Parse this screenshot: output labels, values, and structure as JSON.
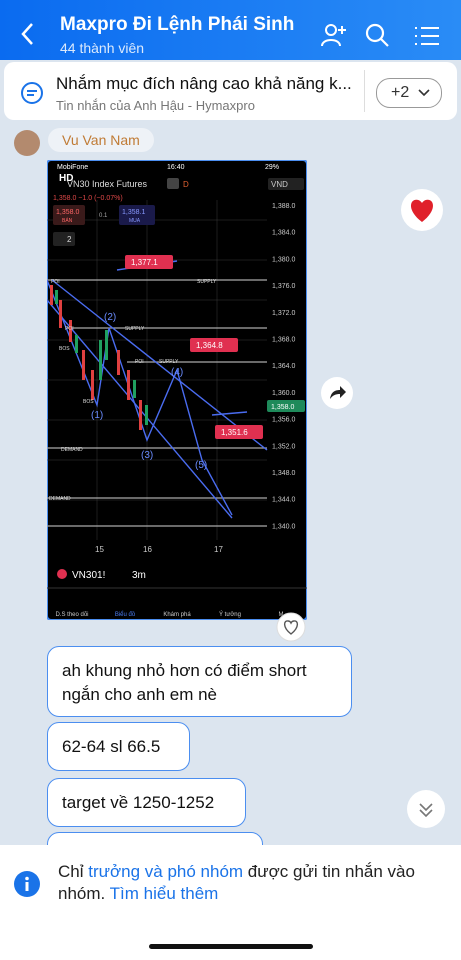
{
  "header": {
    "title": "Maxpro Đi Lệnh Phái Sinh",
    "subtitle": "44 thành viên"
  },
  "pinned": {
    "text": "Nhắm mục đích nâng cao khả năng k...",
    "meta": "Tin nhắn của Anh Hậu - Hymaxpro",
    "more": "+2"
  },
  "sender": {
    "name": "Vu Van Nam"
  },
  "image": {
    "status": {
      "carrier": "MobiFone",
      "time": "16:40",
      "battery": "29%"
    },
    "symbol": "VN30 Index Futures",
    "interval": "D",
    "currency": "VND",
    "hd": "HD",
    "quote": "1,358.0 −1.0 (−0.07%)",
    "sell": {
      "price": "1,358.0",
      "label": "BÁN"
    },
    "spread": "0.1",
    "buy": {
      "price": "1,358.1",
      "label": "MUA"
    },
    "layers": "2",
    "price_labels": [
      "1,388.0",
      "1,384.0",
      "1,380.0",
      "1,376.0",
      "1,372.0",
      "1,368.0",
      "1,364.0",
      "1,360.0",
      "1,356.0",
      "1,352.0",
      "1,348.0",
      "1,344.0",
      "1,340.0"
    ],
    "last_price": "1,358.0",
    "callouts": [
      "1,377.1",
      "1,364.8",
      "1,351.6"
    ],
    "waves": [
      "(1)",
      "(2)",
      "(3)",
      "(4)",
      "(5)"
    ],
    "zones": {
      "supply": "SUPPLY",
      "demand": "DEMAND",
      "poi": "POI",
      "bos": "BOS"
    },
    "dates": [
      "15",
      "16",
      "17"
    ],
    "ticker": "VN301!",
    "timeframe": "3m",
    "nav": [
      "D.S theo dõi",
      "Biểu đồ",
      "Khám phá",
      "Ý tưởng",
      "M"
    ]
  },
  "messages": [
    "ah khung nhỏ hơn có điểm short ngắn cho anh em nè",
    "62-64 sl 66.5",
    "target về 1250-1252"
  ],
  "notice": {
    "before": "Chỉ ",
    "link1": "trưởng và phó nhóm",
    "middle": " được gửi tin nhắn vào nhóm. ",
    "link2": "Tìm hiểu thêm"
  }
}
